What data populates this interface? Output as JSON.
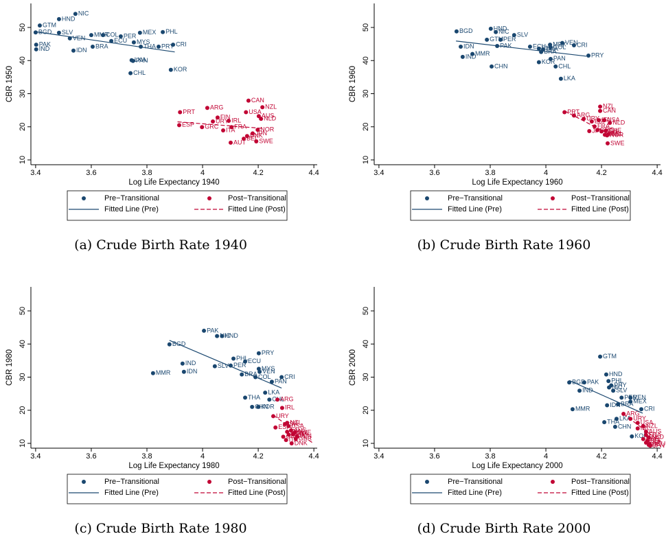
{
  "chart_data": [
    {
      "type": "scatter",
      "caption": "(a) Crude Birth Rate 1940",
      "xlabel": "Log Life Expectancy 1940",
      "ylabel": "CBR 1950",
      "xlim": [
        3.383,
        4.412
      ],
      "ylim": [
        8.55,
        57.25
      ],
      "xticks": [
        3.4,
        3.6,
        3.8,
        4,
        4.2,
        4.4
      ],
      "yticks": [
        10,
        20,
        30,
        40,
        50
      ],
      "series": [
        {
          "name": "Pre−Transitional",
          "mode": "markers",
          "color": "#1a476f",
          "labels": [
            "NIC",
            "HND",
            "GTM",
            "BGD",
            "SLV",
            "VEN",
            "MMR",
            "COL",
            "PER",
            "ECU",
            "MEX",
            "PHL",
            "MYS",
            "THA",
            "PRY",
            "CRI",
            "PAK",
            "IND",
            "BRA",
            "IDN",
            "LKA",
            "PAN",
            "CHL",
            "KOR"
          ],
          "x": [
            3.543,
            3.484,
            3.415,
            3.4,
            3.484,
            3.523,
            3.6,
            3.642,
            3.706,
            3.672,
            3.775,
            3.857,
            3.753,
            3.778,
            3.842,
            3.894,
            3.402,
            3.402,
            3.605,
            3.536,
            3.745,
            3.75,
            3.741,
            3.886
          ],
          "values": [
            54.1,
            52.5,
            50.6,
            48.5,
            48.4,
            46.7,
            47.7,
            47.7,
            47.3,
            45.9,
            48.4,
            48.6,
            45.5,
            44.2,
            44.2,
            44.8,
            44.8,
            43.4,
            44.2,
            43.0,
            40.1,
            39.9,
            36.2,
            37.2
          ]
        },
        {
          "name": "Post−Transitional",
          "mode": "markers",
          "color": "#c10534",
          "labels": [
            "CAN",
            "NZL",
            "ARG",
            "USA",
            "PRT",
            "AUS",
            "FIN",
            "NLD",
            "URY",
            "IRL",
            "ESP",
            "GRC",
            "FRA",
            "NOR",
            "ITA",
            "JPN",
            "DNK",
            "BEL",
            "SWE",
            "AUT"
          ],
          "x": [
            4.165,
            4.215,
            4.017,
            4.156,
            3.919,
            4.202,
            4.054,
            4.21,
            4.037,
            4.094,
            3.916,
            3.998,
            4.104,
            4.198,
            4.074,
            4.18,
            4.16,
            4.148,
            4.193,
            4.101
          ],
          "values": [
            27.9,
            25.9,
            25.7,
            24.4,
            24.4,
            23.2,
            22.8,
            22.4,
            21.6,
            21.8,
            20.5,
            19.9,
            19.9,
            19.1,
            18.9,
            18.0,
            17.2,
            16.4,
            15.6,
            15.2
          ]
        },
        {
          "name": "Fitted Line (Pre)",
          "mode": "lines",
          "color": "#1a476f",
          "dash": false,
          "x": [
            3.4,
            3.9
          ],
          "values": [
            48.7,
            42.6
          ]
        },
        {
          "name": "Fitted Line (Post)",
          "mode": "lines",
          "color": "#c10534",
          "dash": true,
          "x": [
            3.91,
            4.22
          ],
          "values": [
            21.5,
            19.5
          ]
        }
      ]
    },
    {
      "type": "scatter",
      "caption": "(b) Crude Birth Rate 1960",
      "xlabel": "Log Life Expectancy 1960",
      "ylabel": "CBR 1960",
      "xlim": [
        3.383,
        4.412
      ],
      "ylim": [
        8.55,
        57.25
      ],
      "xticks": [
        3.4,
        3.6,
        3.8,
        4,
        4.2,
        4.4
      ],
      "yticks": [
        10,
        20,
        30,
        40,
        50
      ],
      "series": [
        {
          "name": "Pre−Transitional",
          "mode": "markers",
          "color": "#1a476f",
          "labels": [
            "HND",
            "BGD",
            "NIC",
            "SLV",
            "GTM",
            "PER",
            "IDN",
            "PAK",
            "ECU",
            "MEX",
            "VEN",
            "CRI",
            "COL",
            "PHL",
            "BRA",
            "THA",
            "MMR",
            "PRY",
            "IND",
            "PAN",
            "KOR",
            "CHL",
            "CHN",
            "LKA"
          ],
          "x": [
            3.802,
            3.679,
            3.82,
            3.886,
            3.788,
            3.837,
            3.694,
            3.825,
            3.943,
            4.015,
            4.059,
            4.101,
            4.017,
            3.975,
            3.983,
            3.99,
            3.736,
            4.153,
            3.701,
            4.017,
            3.975,
            4.035,
            3.805,
            4.054
          ],
          "values": [
            49.6,
            48.8,
            48.6,
            47.7,
            46.3,
            46.3,
            44.2,
            44.4,
            44.2,
            44.8,
            45.3,
            44.6,
            44.0,
            43.6,
            42.6,
            43.4,
            42.0,
            41.5,
            41.1,
            40.5,
            39.5,
            38.2,
            38.2,
            34.5
          ]
        },
        {
          "name": "Post−Transitional",
          "mode": "markers",
          "color": "#c10534",
          "labels": [
            "NZL",
            "CAN",
            "PRT",
            "ARG",
            "URY",
            "ESP",
            "ITA",
            "USA",
            "NLD",
            "FRA",
            "GRC",
            "GBR",
            "JPN",
            "CHE",
            "DNK",
            "BEL",
            "NOR",
            "SWE"
          ],
          "x": [
            4.195,
            4.195,
            4.067,
            4.101,
            4.136,
            4.165,
            4.19,
            4.21,
            4.23,
            4.175,
            4.185,
            4.2,
            4.156,
            4.215,
            4.212,
            4.225,
            4.22,
            4.222
          ],
          "values": [
            26.1,
            24.8,
            24.4,
            23.4,
            22.4,
            21.6,
            22.0,
            22.0,
            21.2,
            20.1,
            19.0,
            18.6,
            18.7,
            18.8,
            17.6,
            17.8,
            17.4,
            15.0
          ]
        },
        {
          "name": "Fitted Line (Pre)",
          "mode": "lines",
          "color": "#1a476f",
          "dash": false,
          "x": [
            3.677,
            4.146
          ],
          "values": [
            45.9,
            41.3
          ]
        },
        {
          "name": "Fitted Line (Post)",
          "mode": "lines",
          "color": "#c10534",
          "dash": true,
          "x": [
            4.067,
            4.222
          ],
          "values": [
            24.8,
            18.0
          ]
        }
      ]
    },
    {
      "type": "scatter",
      "caption": "(c) Crude Birth Rate 1980",
      "xlabel": "Log Life Expectancy 1980",
      "ylabel": "CBR 1980",
      "xlim": [
        3.383,
        4.412
      ],
      "ylim": [
        8.55,
        57.25
      ],
      "xticks": [
        3.4,
        3.6,
        3.8,
        4,
        4.2,
        4.4
      ],
      "yticks": [
        10,
        20,
        30,
        40,
        50
      ],
      "series": [
        {
          "name": "Pre−Transitional",
          "mode": "markers",
          "color": "#1a476f",
          "labels": [
            "PAK",
            "NIC",
            "HND",
            "BGD",
            "PRY",
            "PHL",
            "ECU",
            "IND",
            "SLV",
            "PER",
            "MYS",
            "VEN",
            "IDN",
            "MMR",
            "BRA",
            "COL",
            "CRI",
            "PAN",
            "LKA",
            "THA",
            "CHL",
            "CHN",
            "KOR"
          ],
          "x": [
            4.005,
            4.052,
            4.07,
            3.881,
            4.202,
            4.111,
            4.153,
            3.928,
            4.044,
            4.101,
            4.202,
            4.205,
            3.933,
            3.822,
            4.141,
            4.19,
            4.284,
            4.249,
            4.225,
            4.153,
            4.24,
            4.178,
            4.2
          ],
          "values": [
            44.0,
            42.4,
            42.4,
            39.9,
            37.2,
            35.6,
            34.7,
            34.1,
            33.3,
            33.5,
            32.5,
            31.6,
            31.6,
            31.2,
            30.8,
            30.0,
            30.0,
            28.6,
            25.3,
            23.8,
            23.2,
            21.0,
            21.0
          ]
        },
        {
          "name": "Post−Transitional",
          "mode": "markers",
          "color": "#c10534",
          "labels": [
            "ARG",
            "IRL",
            "URY",
            "ESP",
            "NZL",
            "USA",
            "ISR",
            "CAN",
            "AUS",
            "GRC",
            "NLD",
            "FRA",
            "SWE",
            "JPN",
            "ITA",
            "GBR",
            "DNK"
          ],
          "x": [
            4.269,
            4.286,
            4.254,
            4.262,
            4.304,
            4.309,
            4.296,
            4.304,
            4.318,
            4.29,
            4.31,
            4.325,
            4.33,
            4.34,
            4.3,
            4.335,
            4.32
          ],
          "values": [
            23.2,
            20.7,
            18.2,
            14.8,
            16.2,
            15.2,
            15.8,
            13.5,
            13.9,
            12.0,
            12.6,
            12.8,
            13.2,
            12.1,
            11.0,
            11.4,
            10.0
          ]
        },
        {
          "name": "Fitted Line (Pre)",
          "mode": "lines",
          "color": "#1a476f",
          "dash": false,
          "x": [
            3.881,
            4.284
          ],
          "values": [
            41.1,
            26.7
          ]
        },
        {
          "name": "Fitted Line (Post)",
          "mode": "lines",
          "color": "#c10534",
          "dash": true,
          "x": [
            4.254,
            4.395
          ],
          "values": [
            18.5,
            10.2
          ]
        }
      ]
    },
    {
      "type": "scatter",
      "caption": "(d) Crude Birth Rate 2000",
      "xlabel": "Log Life Expectancy 2000",
      "ylabel": "CBR 2000",
      "xlim": [
        3.383,
        4.412
      ],
      "ylim": [
        8.55,
        57.25
      ],
      "xticks": [
        3.4,
        3.6,
        3.8,
        4,
        4.2,
        4.4
      ],
      "yticks": [
        10,
        20,
        30,
        40,
        50
      ],
      "series": [
        {
          "name": "Pre−Transitional",
          "mode": "markers",
          "color": "#1a476f",
          "labels": [
            "GTM",
            "HND",
            "BGD",
            "PAK",
            "PHL",
            "PRY",
            "NIC",
            "SLV",
            "IND",
            "PER",
            "VEN",
            "MEX",
            "BRA",
            "IDN",
            "CRI",
            "MMR",
            "LKA",
            "THA",
            "CHN",
            "KOR"
          ],
          "x": [
            4.195,
            4.217,
            4.084,
            4.138,
            4.225,
            4.235,
            4.227,
            4.242,
            4.121,
            4.272,
            4.304,
            4.304,
            4.259,
            4.22,
            4.343,
            4.096,
            4.254,
            4.21,
            4.249,
            4.309
          ],
          "values": [
            36.2,
            30.8,
            28.4,
            28.4,
            28.8,
            27.5,
            26.9,
            25.9,
            25.9,
            23.8,
            23.8,
            22.6,
            21.8,
            21.5,
            20.3,
            20.3,
            17.4,
            16.4,
            15.0,
            12.1
          ]
        },
        {
          "name": "Post−Transitional",
          "mode": "markers",
          "color": "#c10534",
          "labels": [
            "ARG",
            "URY",
            "USA",
            "NZL",
            "IRL",
            "AUS",
            "FRA",
            "NLD",
            "GBR",
            "ESP",
            "ITA",
            "JPN",
            "BEL",
            "DEU"
          ],
          "x": [
            4.279,
            4.304,
            4.33,
            4.35,
            4.33,
            4.36,
            4.36,
            4.37,
            4.35,
            4.36,
            4.37,
            4.375,
            4.365,
            4.373
          ],
          "values": [
            18.9,
            17.4,
            16.2,
            15.2,
            14.5,
            13.5,
            12.5,
            11.8,
            11.3,
            10.2,
            9.5,
            9.3,
            10.8,
            9.8
          ]
        },
        {
          "name": "Fitted Line (Pre)",
          "mode": "lines",
          "color": "#1a476f",
          "dash": false,
          "x": [
            4.084,
            4.348
          ],
          "values": [
            29.0,
            19.1
          ]
        },
        {
          "name": "Fitted Line (Post)",
          "mode": "lines",
          "color": "#c10534",
          "dash": true,
          "x": [
            4.279,
            4.41
          ],
          "values": [
            18.9,
            10.5
          ]
        }
      ]
    }
  ]
}
